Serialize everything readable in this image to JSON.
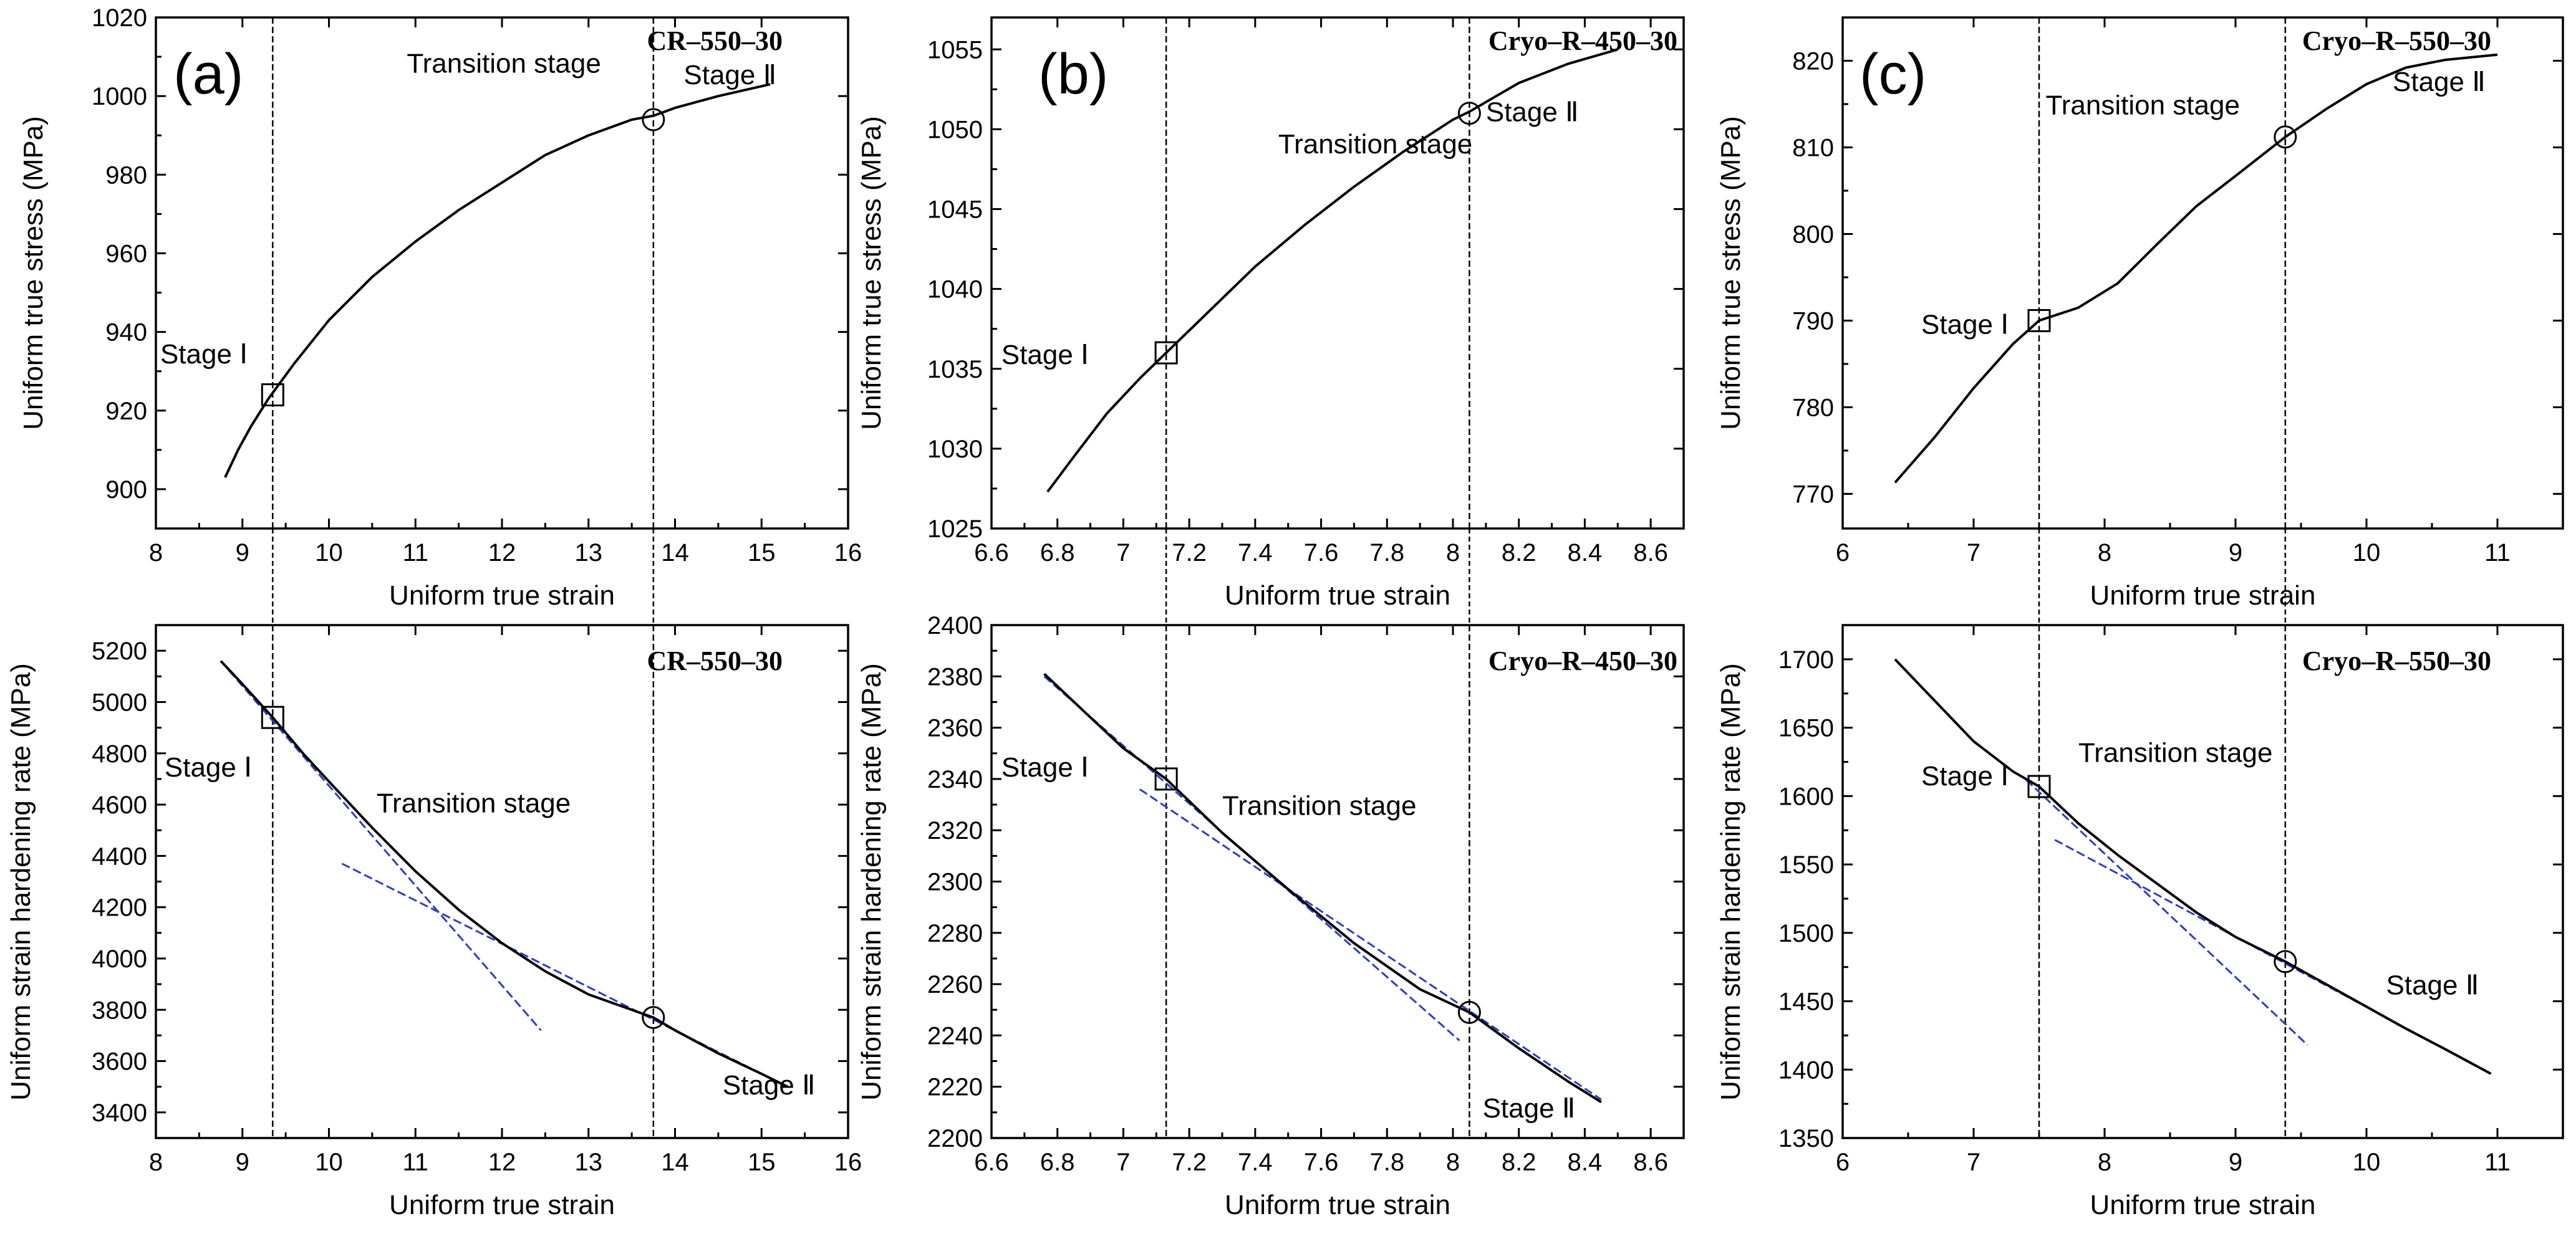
{
  "chart_data": [
    {
      "id": "a_stress",
      "type": "line",
      "panel_label": "(a)",
      "sample": "CR–550–30",
      "xlabel": "Uniform true strain",
      "ylabel": "Uniform true stress (MPa)",
      "xlim": [
        8,
        16
      ],
      "ylim": [
        890,
        1020
      ],
      "xticks": [
        8,
        9,
        10,
        11,
        12,
        13,
        14,
        15,
        16
      ],
      "yticks": [
        900,
        920,
        940,
        960,
        980,
        1000,
        1020
      ],
      "vlines": [
        9.35,
        13.75
      ],
      "series": [
        {
          "name": "stress",
          "x": [
            8.8,
            8.95,
            9.1,
            9.3,
            9.6,
            10.0,
            10.5,
            11.0,
            11.5,
            12.0,
            12.5,
            13.0,
            13.5,
            13.75,
            14.0,
            14.5,
            15.1
          ],
          "y": [
            903,
            910,
            916,
            923,
            932,
            943,
            954,
            963,
            971,
            978,
            985,
            990,
            994,
            995,
            997,
            1000,
            1003
          ]
        }
      ],
      "markers": [
        {
          "shape": "square",
          "x": 9.35,
          "y": 924
        },
        {
          "shape": "circle",
          "x": 13.75,
          "y": 994
        }
      ],
      "annotations": [
        {
          "text": "Stage Ⅰ",
          "x": 8.05,
          "y": 932
        },
        {
          "text": "Transition stage",
          "x": 10.9,
          "y": 1006
        },
        {
          "text": "Stage Ⅱ",
          "x": 14.1,
          "y": 1003
        }
      ]
    },
    {
      "id": "b_stress",
      "type": "line",
      "panel_label": "(b)",
      "sample": "Cryo–R–450–30",
      "xlabel": "Uniform true strain",
      "ylabel": "Uniform true stress (MPa)",
      "xlim": [
        6.6,
        8.7
      ],
      "ylim": [
        1025,
        1057
      ],
      "xticks": [
        6.6,
        6.8,
        7.0,
        7.2,
        7.4,
        7.6,
        7.8,
        8.0,
        8.2,
        8.4,
        8.6
      ],
      "yticks": [
        1025,
        1030,
        1035,
        1040,
        1045,
        1050,
        1055
      ],
      "vlines": [
        7.13,
        8.05
      ],
      "series": [
        {
          "name": "stress",
          "x": [
            6.77,
            6.85,
            6.95,
            7.05,
            7.13,
            7.25,
            7.4,
            7.55,
            7.7,
            7.85,
            8.0,
            8.05,
            8.2,
            8.35,
            8.5
          ],
          "y": [
            1027.3,
            1029.5,
            1032.2,
            1034.4,
            1036.0,
            1038.4,
            1041.4,
            1044.0,
            1046.4,
            1048.6,
            1050.6,
            1051.1,
            1052.9,
            1054.1,
            1055.0
          ]
        }
      ],
      "markers": [
        {
          "shape": "square",
          "x": 7.13,
          "y": 1036
        },
        {
          "shape": "circle",
          "x": 8.05,
          "y": 1051
        }
      ],
      "annotations": [
        {
          "text": "Stage Ⅰ",
          "x": 6.63,
          "y": 1035.3
        },
        {
          "text": "Transition stage",
          "x": 7.47,
          "y": 1048.5
        },
        {
          "text": "Stage Ⅱ",
          "x": 8.1,
          "y": 1050.5
        }
      ]
    },
    {
      "id": "c_stress",
      "type": "line",
      "panel_label": "(c)",
      "sample": "Cryo–R–550–30",
      "xlabel": "Uniform true strain",
      "ylabel": "Uniform true stress (MPa)",
      "xlim": [
        6,
        11.5
      ],
      "ylim": [
        766,
        825
      ],
      "xticks": [
        6,
        7,
        8,
        9,
        10,
        11
      ],
      "yticks": [
        770,
        780,
        790,
        800,
        810,
        820
      ],
      "vlines": [
        7.5,
        9.38
      ],
      "series": [
        {
          "name": "stress",
          "x": [
            6.4,
            6.7,
            7.0,
            7.3,
            7.5,
            7.8,
            8.1,
            8.4,
            8.7,
            9.0,
            9.38,
            9.7,
            10.0,
            10.3,
            10.6,
            11.0
          ],
          "y": [
            771.3,
            776.5,
            782.2,
            787.3,
            790.0,
            791.5,
            794.3,
            798.8,
            803.2,
            806.7,
            811.2,
            814.5,
            817.3,
            819.2,
            820.1,
            820.7
          ]
        }
      ],
      "markers": [
        {
          "shape": "square",
          "x": 7.5,
          "y": 790
        },
        {
          "shape": "circle",
          "x": 9.38,
          "y": 811.2
        }
      ],
      "annotations": [
        {
          "text": "Stage Ⅰ",
          "x": 6.6,
          "y": 788.5
        },
        {
          "text": "Transition stage",
          "x": 7.55,
          "y": 813.8
        },
        {
          "text": "Stage Ⅱ",
          "x": 10.2,
          "y": 816.5
        }
      ]
    },
    {
      "id": "a_rate",
      "type": "line",
      "sample": "CR–550–30",
      "xlabel": "Uniform true strain",
      "ylabel": "Uniform strain hardening rate (MPa)",
      "xlim": [
        8,
        16
      ],
      "ylim": [
        3300,
        5300
      ],
      "xticks": [
        8,
        9,
        10,
        11,
        12,
        13,
        14,
        15,
        16
      ],
      "yticks": [
        3400,
        3600,
        3800,
        4000,
        4200,
        4400,
        4600,
        4800,
        5000,
        5200
      ],
      "vlines": [
        9.35,
        13.75
      ],
      "series": [
        {
          "name": "hardening rate",
          "x": [
            8.75,
            9.0,
            9.35,
            9.7,
            10.0,
            10.5,
            11.0,
            11.5,
            12.0,
            12.5,
            13.0,
            13.5,
            13.75,
            14.0,
            14.5,
            15.0,
            15.3
          ],
          "y": [
            5160,
            5070,
            4940,
            4800,
            4690,
            4510,
            4340,
            4190,
            4060,
            3950,
            3860,
            3800,
            3770,
            3720,
            3630,
            3550,
            3500
          ]
        }
      ],
      "fit_lines": [
        {
          "name": "Stage I fit",
          "x": [
            8.75,
            12.45
          ],
          "y": [
            5160,
            3720
          ]
        },
        {
          "name": "Stage II fit",
          "x": [
            10.15,
            15.3
          ],
          "y": [
            4370,
            3500
          ]
        }
      ],
      "markers": [
        {
          "shape": "square",
          "x": 9.35,
          "y": 4940
        },
        {
          "shape": "circle",
          "x": 13.75,
          "y": 3770
        }
      ],
      "annotations": [
        {
          "text": "Stage Ⅰ",
          "x": 8.1,
          "y": 4710
        },
        {
          "text": "Transition stage",
          "x": 10.55,
          "y": 4570
        },
        {
          "text": "Stage Ⅱ",
          "x": 14.55,
          "y": 3470
        }
      ]
    },
    {
      "id": "b_rate",
      "type": "line",
      "sample": "Cryo–R–450–30",
      "xlabel": "Uniform true strain",
      "ylabel": "Uniform strain hardening rate (MPa)",
      "xlim": [
        6.6,
        8.7
      ],
      "ylim": [
        2200,
        2400
      ],
      "xticks": [
        6.6,
        6.8,
        7.0,
        7.2,
        7.4,
        7.6,
        7.8,
        8.0,
        8.2,
        8.4,
        8.6
      ],
      "yticks": [
        2200,
        2220,
        2240,
        2260,
        2280,
        2300,
        2320,
        2340,
        2360,
        2380,
        2400
      ],
      "vlines": [
        7.13,
        8.05
      ],
      "series": [
        {
          "name": "hardening rate",
          "x": [
            6.76,
            6.9,
            7.0,
            7.13,
            7.3,
            7.5,
            7.7,
            7.9,
            8.05,
            8.2,
            8.35,
            8.45
          ],
          "y": [
            2381,
            2364,
            2352,
            2340,
            2319,
            2297,
            2276,
            2258,
            2249,
            2235,
            2222,
            2214
          ]
        }
      ],
      "fit_lines": [
        {
          "name": "Stage I fit",
          "x": [
            6.76,
            8.02
          ],
          "y": [
            2380,
            2238
          ]
        },
        {
          "name": "Stage II fit",
          "x": [
            7.05,
            8.45
          ],
          "y": [
            2336,
            2215
          ]
        }
      ],
      "markers": [
        {
          "shape": "square",
          "x": 7.13,
          "y": 2340
        },
        {
          "shape": "circle",
          "x": 8.05,
          "y": 2249
        }
      ],
      "annotations": [
        {
          "text": "Stage Ⅰ",
          "x": 6.63,
          "y": 2341
        },
        {
          "text": "Transition stage",
          "x": 7.3,
          "y": 2326
        },
        {
          "text": "Stage Ⅱ",
          "x": 8.09,
          "y": 2208
        }
      ]
    },
    {
      "id": "c_rate",
      "type": "line",
      "sample": "Cryo–R–550–30",
      "xlabel": "Uniform true strain",
      "ylabel": "Uniform strain hardening rate (MPa)",
      "xlim": [
        6,
        11.5
      ],
      "ylim": [
        1350,
        1725
      ],
      "xticks": [
        6,
        7,
        8,
        9,
        10,
        11
      ],
      "yticks": [
        1350,
        1400,
        1450,
        1500,
        1550,
        1600,
        1650,
        1700
      ],
      "vlines": [
        7.5,
        9.38
      ],
      "series": [
        {
          "name": "hardening rate",
          "x": [
            6.4,
            6.7,
            7.0,
            7.3,
            7.5,
            7.8,
            8.1,
            8.4,
            8.7,
            9.0,
            9.38,
            9.7,
            10.0,
            10.3,
            10.6,
            10.95
          ],
          "y": [
            1700,
            1670,
            1640,
            1618,
            1607,
            1580,
            1557,
            1536,
            1515,
            1497,
            1479,
            1462,
            1446,
            1430,
            1415,
            1397
          ]
        }
      ],
      "fit_lines": [
        {
          "name": "Stage I fit",
          "x": [
            7.4,
            9.55
          ],
          "y": [
            1612,
            1418
          ]
        },
        {
          "name": "Stage II fit",
          "x": [
            7.62,
            10.95
          ],
          "y": [
            1568,
            1397
          ]
        }
      ],
      "markers": [
        {
          "shape": "square",
          "x": 7.5,
          "y": 1607
        },
        {
          "shape": "circle",
          "x": 9.38,
          "y": 1479
        }
      ],
      "annotations": [
        {
          "text": "Stage Ⅰ",
          "x": 6.6,
          "y": 1608
        },
        {
          "text": "Transition stage",
          "x": 7.8,
          "y": 1625
        },
        {
          "text": "Stage Ⅱ",
          "x": 10.15,
          "y": 1455
        }
      ]
    }
  ]
}
